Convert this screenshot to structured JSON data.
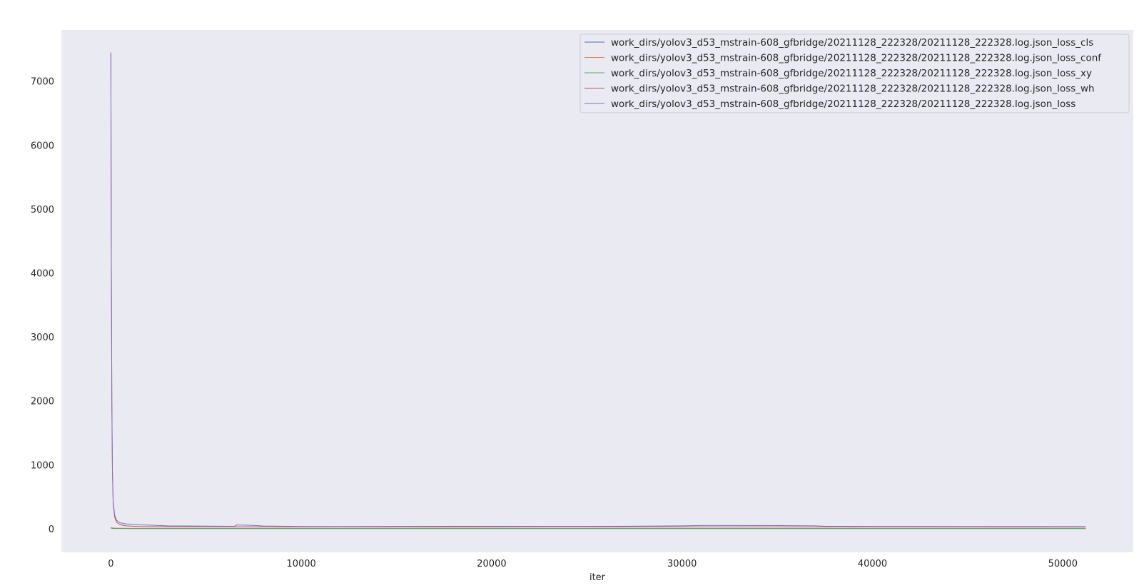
{
  "chart_data": {
    "type": "line",
    "title": "",
    "xlabel": "iter",
    "ylabel": "",
    "xlim": [
      -2600,
      53700
    ],
    "ylim": [
      -370,
      7800
    ],
    "x_ticks": [
      0,
      10000,
      20000,
      30000,
      40000,
      50000
    ],
    "x_tick_labels": [
      "0",
      "10000",
      "20000",
      "30000",
      "40000",
      "50000"
    ],
    "y_ticks": [
      0,
      1000,
      2000,
      3000,
      4000,
      5000,
      6000,
      7000
    ],
    "y_tick_labels": [
      "0",
      "1000",
      "2000",
      "3000",
      "4000",
      "5000",
      "6000",
      "7000"
    ],
    "grid": false,
    "background": "#eaeaf2",
    "legend_position": "top-right",
    "series": [
      {
        "name": "work_dirs/yolov3_d53_mstrain-608_gfbridge/20211128_222328/20211128_222328.log.json_loss_cls",
        "color": "#4c72b0",
        "x": [
          0,
          50,
          100,
          200,
          500,
          1000,
          51200
        ],
        "y": [
          8,
          6,
          4,
          3,
          2,
          1.5,
          1
        ]
      },
      {
        "name": "work_dirs/yolov3_d53_mstrain-608_gfbridge/20211128_222328/20211128_222328.log.json_loss_conf",
        "color": "#dd8452",
        "x": [
          0,
          50,
          100,
          200,
          500,
          1000,
          51200
        ],
        "y": [
          20,
          15,
          10,
          8,
          6,
          5,
          4
        ]
      },
      {
        "name": "work_dirs/yolov3_d53_mstrain-608_gfbridge/20211128_222328/20211128_222328.log.json_loss_xy",
        "color": "#55a868",
        "x": [
          0,
          50,
          100,
          200,
          500,
          1000,
          51200
        ],
        "y": [
          10,
          8,
          7,
          6,
          5,
          4,
          4
        ]
      },
      {
        "name": "work_dirs/yolov3_d53_mstrain-608_gfbridge/20211128_222328/20211128_222328.log.json_loss_wh",
        "color": "#c44e52",
        "x": [
          0,
          20,
          50,
          80,
          120,
          200,
          300,
          500,
          800,
          1000,
          1500,
          2000,
          5000,
          10000,
          20000,
          30000,
          40000,
          51200
        ],
        "y": [
          7420,
          4500,
          2000,
          900,
          400,
          180,
          100,
          60,
          45,
          40,
          35,
          32,
          30,
          28,
          27,
          27,
          26,
          25
        ]
      },
      {
        "name": "work_dirs/yolov3_d53_mstrain-608_gfbridge/20211128_222328/20211128_222328.log.json_loss",
        "color": "#8172b3",
        "x": [
          0,
          20,
          50,
          80,
          120,
          200,
          300,
          500,
          800,
          1000,
          1500,
          2000,
          3000,
          5000,
          6500,
          6600,
          7500,
          8000,
          10000,
          12000,
          15000,
          18000,
          20000,
          25000,
          28000,
          30000,
          31000,
          35000,
          37000,
          37500,
          40000,
          42000,
          45000,
          48000,
          51200
        ],
        "y": [
          7450,
          4530,
          2030,
          930,
          430,
          210,
          130,
          90,
          75,
          70,
          60,
          55,
          45,
          40,
          38,
          58,
          52,
          42,
          35,
          33,
          36,
          38,
          37,
          36,
          40,
          45,
          50,
          48,
          45,
          38,
          35,
          34,
          33,
          33,
          32
        ]
      }
    ]
  }
}
